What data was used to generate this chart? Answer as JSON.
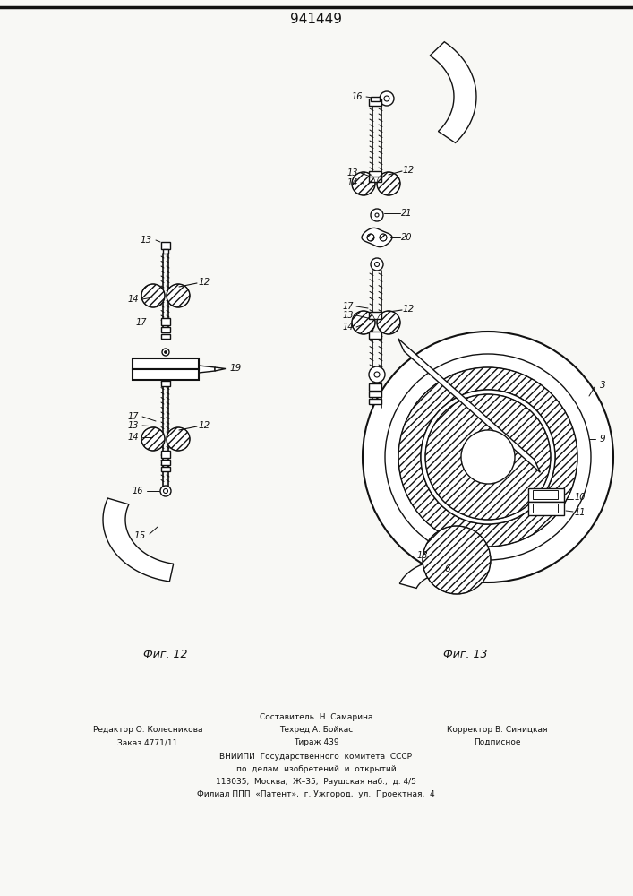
{
  "title": "941449",
  "title_fontsize": 11,
  "bg_color": "#f8f8f5",
  "fig12_label": "Фиг. 12",
  "fig13_label": "Фиг. 13"
}
